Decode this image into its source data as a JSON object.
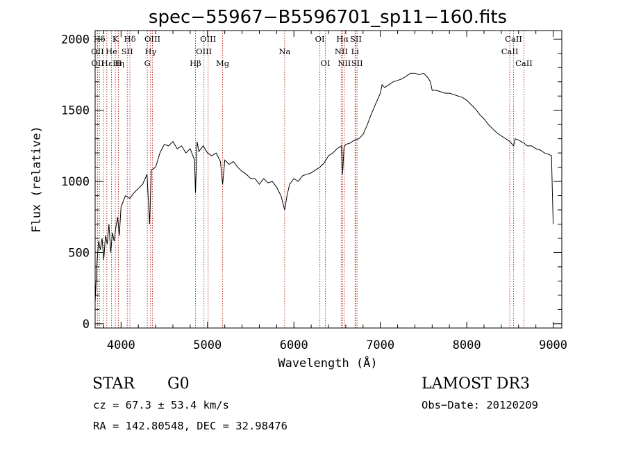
{
  "chart_data": {
    "type": "line",
    "title": "spec−55967−B5596701_sp11−160.fits",
    "xlabel": "Wavelength (Å)",
    "ylabel": "Flux (relative)",
    "xlim": [
      3700,
      9100
    ],
    "ylim": [
      -30,
      2060
    ],
    "xticks": [
      4000,
      5000,
      6000,
      7000,
      8000,
      9000
    ],
    "yticks": [
      0,
      500,
      1000,
      1500,
      2000
    ],
    "grid": false,
    "series": [
      {
        "x": [
          3700,
          3720,
          3740,
          3760,
          3780,
          3800,
          3820,
          3840,
          3860,
          3880,
          3900,
          3920,
          3940,
          3960,
          3980,
          4000,
          4050,
          4100,
          4150,
          4200,
          4250,
          4300,
          4330,
          4350,
          4400,
          4450,
          4500,
          4550,
          4600,
          4650,
          4700,
          4750,
          4800,
          4850,
          4861,
          4880,
          4900,
          4950,
          5000,
          5050,
          5100,
          5150,
          5175,
          5200,
          5250,
          5300,
          5350,
          5400,
          5450,
          5500,
          5550,
          5600,
          5650,
          5700,
          5750,
          5800,
          5850,
          5893,
          5920,
          5950,
          6000,
          6050,
          6100,
          6150,
          6200,
          6250,
          6300,
          6350,
          6400,
          6450,
          6500,
          6550,
          6563,
          6580,
          6600,
          6650,
          6700,
          6750,
          6800,
          6850,
          6900,
          6950,
          7000,
          7020,
          7050,
          7100,
          7150,
          7200,
          7250,
          7300,
          7350,
          7400,
          7450,
          7500,
          7550,
          7580,
          7600,
          7650,
          7700,
          7750,
          7800,
          7850,
          7900,
          7950,
          8000,
          8050,
          8100,
          8150,
          8200,
          8250,
          8300,
          8350,
          8400,
          8450,
          8500,
          8542,
          8560,
          8600,
          8662,
          8700,
          8750,
          8800,
          8850,
          8900,
          8950,
          8980,
          9000
        ],
        "y": [
          150,
          420,
          580,
          520,
          600,
          450,
          620,
          560,
          700,
          500,
          640,
          580,
          680,
          750,
          620,
          820,
          900,
          880,
          920,
          950,
          980,
          1050,
          700,
          1080,
          1100,
          1200,
          1260,
          1250,
          1280,
          1230,
          1250,
          1200,
          1230,
          1150,
          920,
          1280,
          1210,
          1250,
          1200,
          1180,
          1200,
          1140,
          980,
          1150,
          1120,
          1140,
          1100,
          1070,
          1050,
          1020,
          1020,
          980,
          1020,
          990,
          1000,
          960,
          900,
          800,
          900,
          980,
          1020,
          1000,
          1040,
          1050,
          1060,
          1080,
          1100,
          1130,
          1180,
          1200,
          1230,
          1250,
          1050,
          1240,
          1260,
          1270,
          1290,
          1300,
          1330,
          1400,
          1480,
          1550,
          1620,
          1680,
          1660,
          1680,
          1700,
          1710,
          1720,
          1740,
          1760,
          1760,
          1750,
          1760,
          1730,
          1700,
          1640,
          1640,
          1630,
          1620,
          1620,
          1610,
          1600,
          1590,
          1570,
          1540,
          1510,
          1470,
          1440,
          1400,
          1370,
          1340,
          1320,
          1300,
          1280,
          1250,
          1300,
          1290,
          1270,
          1250,
          1250,
          1230,
          1220,
          1200,
          1190,
          1180,
          700
        ]
      }
    ],
    "line_markers": [
      {
        "label": "Hδ",
        "x": 3750,
        "row": 0
      },
      {
        "label": "K",
        "x": 3934,
        "row": 0
      },
      {
        "label": "Hδ",
        "x": 4102,
        "row": 0
      },
      {
        "label": "OIII",
        "x": 4363,
        "row": 0
      },
      {
        "label": "OIII",
        "x": 5007,
        "row": 0
      },
      {
        "label": "OI",
        "x": 6300,
        "row": 0
      },
      {
        "label": "Hα",
        "x": 6563,
        "row": 0
      },
      {
        "label": "SII",
        "x": 6717,
        "row": 0
      },
      {
        "label": "CaII",
        "x": 8542,
        "row": 0
      },
      {
        "label": "OII",
        "x": 3727,
        "row": 1
      },
      {
        "label": "He",
        "x": 3889,
        "row": 1
      },
      {
        "label": "SII",
        "x": 4072,
        "row": 1
      },
      {
        "label": "Hγ",
        "x": 4341,
        "row": 1
      },
      {
        "label": "OIII",
        "x": 4959,
        "row": 1
      },
      {
        "label": "Na",
        "x": 5893,
        "row": 1
      },
      {
        "label": "NII",
        "x": 6548,
        "row": 1
      },
      {
        "label": "Li",
        "x": 6708,
        "row": 1
      },
      {
        "label": "CaII",
        "x": 8498,
        "row": 1
      },
      {
        "label": "OII",
        "x": 3729,
        "row": 2
      },
      {
        "label": "Hε",
        "x": 3835,
        "row": 2
      },
      {
        "label": "Hη",
        "x": 3970,
        "row": 2
      },
      {
        "label": "H",
        "x": 3968,
        "row": 2
      },
      {
        "label": "G",
        "x": 4304,
        "row": 2
      },
      {
        "label": "Hβ",
        "x": 4861,
        "row": 2
      },
      {
        "label": "Mg",
        "x": 5175,
        "row": 2
      },
      {
        "label": "OI",
        "x": 6364,
        "row": 2
      },
      {
        "label": "NII",
        "x": 6583,
        "row": 2
      },
      {
        "label": "SII",
        "x": 6731,
        "row": 2
      },
      {
        "label": "CaII",
        "x": 8662,
        "row": 2
      }
    ],
    "extra_marker_lines": [
      3797,
      3889,
      4861,
      5007,
      6548,
      6583,
      6708,
      6717,
      6731
    ]
  },
  "info": {
    "class_label": "STAR",
    "subclass_label": "G0",
    "survey_label": "LAMOST DR3",
    "cz_text": "cz = 67.3 ± 53.4 km/s",
    "obs_date_text": "Obs−Date: 20120209",
    "coords_text": "RA = 142.80548, DEC =  32.98476"
  }
}
